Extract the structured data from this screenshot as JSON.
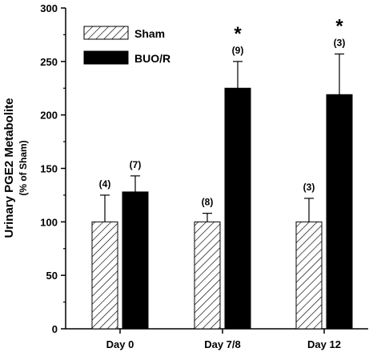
{
  "chart_data": {
    "type": "bar",
    "categories": [
      "Day 0",
      "Day 7/8",
      "Day 12"
    ],
    "ylabel_main": "Urinary PGE2 Metabolite",
    "ylabel_sub": "(% of Sham)",
    "ylim": [
      0,
      300
    ],
    "yticks": [
      0,
      50,
      100,
      150,
      200,
      250,
      300
    ],
    "legend_position": "top-left",
    "series": [
      {
        "name": "Sham",
        "pattern": "hatched",
        "values": [
          100,
          100,
          100
        ],
        "error": [
          25,
          8,
          22
        ],
        "n_labels": [
          "(4)",
          "(8)",
          "(3)"
        ],
        "significance": [
          "",
          "",
          ""
        ]
      },
      {
        "name": "BUO/R",
        "pattern": "solid",
        "color": "#000000",
        "values": [
          128,
          225,
          219
        ],
        "error": [
          15,
          25,
          38
        ],
        "n_labels": [
          "(7)",
          "(9)",
          "(3)"
        ],
        "significance": [
          "",
          "*",
          "*"
        ]
      }
    ]
  }
}
